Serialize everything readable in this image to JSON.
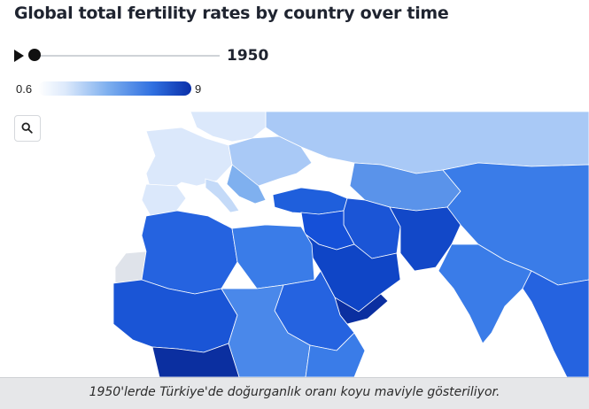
{
  "title": "Global total fertility rates by country over time",
  "timeline": {
    "year": "1950"
  },
  "legend": {
    "min": "0.6",
    "max": "9"
  },
  "icons": {
    "play": "play-icon",
    "zoom": "search-icon"
  },
  "colors": {
    "lightest": "#dbe8fb",
    "light": "#a9c9f6",
    "mid": "#3a7ce8",
    "dark": "#1550d8",
    "darkest": "#0b2fa0"
  },
  "caption": "1950'lerde Türkiye'de doğurganlık oranı koyu maviyle gösteriliyor."
}
